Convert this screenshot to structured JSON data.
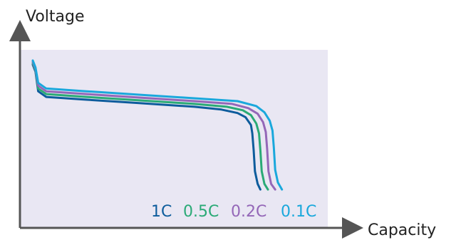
{
  "chart_data": {
    "type": "line",
    "title": "",
    "xlabel": "Capacity",
    "ylabel": "Voltage",
    "grid": false,
    "legend": "bottom-right inline labels",
    "xlim": [
      0,
      1
    ],
    "ylim": [
      0,
      1
    ],
    "series": [
      {
        "name": "1C",
        "color": "#0d5c9c",
        "x": [
          0.0,
          0.01,
          0.02,
          0.05,
          0.2,
          0.4,
          0.6,
          0.7,
          0.76,
          0.79,
          0.81,
          0.815,
          0.82,
          0.825,
          0.835,
          0.845
        ],
        "y": [
          0.92,
          0.87,
          0.73,
          0.69,
          0.67,
          0.645,
          0.62,
          0.6,
          0.575,
          0.545,
          0.49,
          0.43,
          0.31,
          0.16,
          0.07,
          0.03
        ]
      },
      {
        "name": "0.5C",
        "color": "#2aaa76",
        "x": [
          0.0,
          0.01,
          0.02,
          0.05,
          0.2,
          0.4,
          0.6,
          0.72,
          0.78,
          0.81,
          0.83,
          0.84,
          0.845,
          0.85,
          0.86,
          0.873
        ],
        "y": [
          0.93,
          0.88,
          0.75,
          0.71,
          0.69,
          0.665,
          0.64,
          0.62,
          0.595,
          0.56,
          0.5,
          0.43,
          0.31,
          0.16,
          0.07,
          0.03
        ]
      },
      {
        "name": "0.2C",
        "color": "#9467b8",
        "x": [
          0.0,
          0.01,
          0.02,
          0.05,
          0.2,
          0.4,
          0.6,
          0.74,
          0.8,
          0.835,
          0.855,
          0.865,
          0.87,
          0.875,
          0.885,
          0.9
        ],
        "y": [
          0.94,
          0.89,
          0.77,
          0.73,
          0.71,
          0.685,
          0.66,
          0.64,
          0.61,
          0.57,
          0.51,
          0.44,
          0.32,
          0.16,
          0.07,
          0.03
        ]
      },
      {
        "name": "0.1C",
        "color": "#1aa8dc",
        "x": [
          0.0,
          0.01,
          0.02,
          0.05,
          0.2,
          0.4,
          0.6,
          0.76,
          0.83,
          0.86,
          0.88,
          0.89,
          0.895,
          0.9,
          0.91,
          0.925
        ],
        "y": [
          0.95,
          0.9,
          0.79,
          0.75,
          0.73,
          0.705,
          0.68,
          0.66,
          0.625,
          0.58,
          0.52,
          0.45,
          0.33,
          0.17,
          0.08,
          0.03
        ]
      }
    ]
  }
}
